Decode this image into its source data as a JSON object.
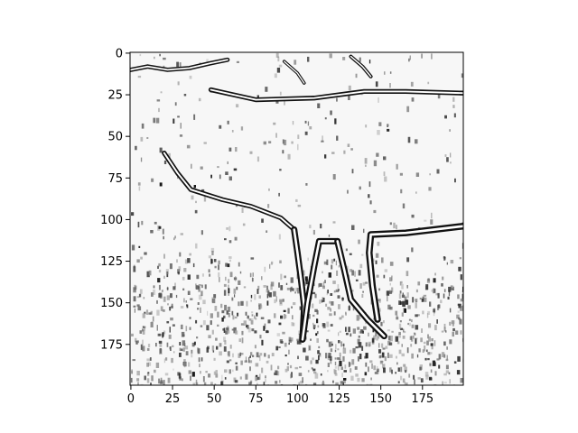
{
  "chart_data": {
    "type": "heatmap",
    "title": "",
    "xlabel": "",
    "ylabel": "",
    "colormap": "gray",
    "image_shape": [
      200,
      200
    ],
    "xlim": [
      -0.5,
      199.5
    ],
    "ylim": [
      199.5,
      -0.5
    ],
    "x_ticks": [
      0,
      25,
      50,
      75,
      100,
      125,
      150,
      175
    ],
    "x_tick_labels": [
      "0",
      "25",
      "50",
      "75",
      "100",
      "125",
      "150",
      "175"
    ],
    "y_ticks": [
      0,
      25,
      50,
      75,
      100,
      125,
      150,
      175
    ],
    "y_tick_labels": [
      "0",
      "25",
      "50",
      "75",
      "100",
      "125",
      "150",
      "175"
    ],
    "grid": false,
    "content": "grayscale edge-filter image of an animal (horse-like) body with legs standing on grass",
    "outline_paths": [
      {
        "points": [
          [
            0,
            10
          ],
          [
            10,
            8
          ],
          [
            22,
            10
          ],
          [
            35,
            9
          ],
          [
            48,
            6
          ],
          [
            58,
            4
          ]
        ],
        "weight": 2.2
      },
      {
        "points": [
          [
            48,
            22
          ],
          [
            75,
            28
          ],
          [
            110,
            27
          ],
          [
            140,
            23
          ],
          [
            165,
            23
          ],
          [
            199,
            24
          ]
        ],
        "weight": 2.4
      },
      {
        "points": [
          [
            20,
            60
          ],
          [
            28,
            72
          ],
          [
            36,
            82
          ],
          [
            55,
            88
          ],
          [
            72,
            92
          ],
          [
            90,
            99
          ],
          [
            98,
            106
          ]
        ],
        "weight": 2.4
      },
      {
        "points": [
          [
            98,
            106
          ],
          [
            100,
            120
          ],
          [
            102,
            135
          ],
          [
            104,
            152
          ],
          [
            103,
            172
          ]
        ],
        "weight": 3.2
      },
      {
        "points": [
          [
            103,
            172
          ],
          [
            106,
            150
          ],
          [
            110,
            128
          ],
          [
            113,
            113
          ],
          [
            124,
            113
          ]
        ],
        "weight": 3.2
      },
      {
        "points": [
          [
            124,
            113
          ],
          [
            128,
            130
          ],
          [
            132,
            148
          ],
          [
            142,
            160
          ],
          [
            152,
            170
          ]
        ],
        "weight": 3.2
      },
      {
        "points": [
          [
            148,
            160
          ],
          [
            145,
            140
          ],
          [
            143,
            120
          ],
          [
            144,
            109
          ],
          [
            165,
            108
          ],
          [
            199,
            104
          ]
        ],
        "weight": 3.4
      },
      {
        "points": [
          [
            92,
            5
          ],
          [
            100,
            12
          ],
          [
            104,
            18
          ]
        ],
        "weight": 1.6
      },
      {
        "points": [
          [
            132,
            2
          ],
          [
            139,
            8
          ],
          [
            144,
            14
          ]
        ],
        "weight": 1.8
      }
    ],
    "texture_zones": [
      {
        "x": [
          0,
          200
        ],
        "y": [
          138,
          200
        ],
        "density": 0.42
      },
      {
        "x": [
          0,
          200
        ],
        "y": [
          120,
          138
        ],
        "density": 0.22
      },
      {
        "x": [
          0,
          200
        ],
        "y": [
          0,
          120
        ],
        "density": 0.06
      }
    ]
  }
}
